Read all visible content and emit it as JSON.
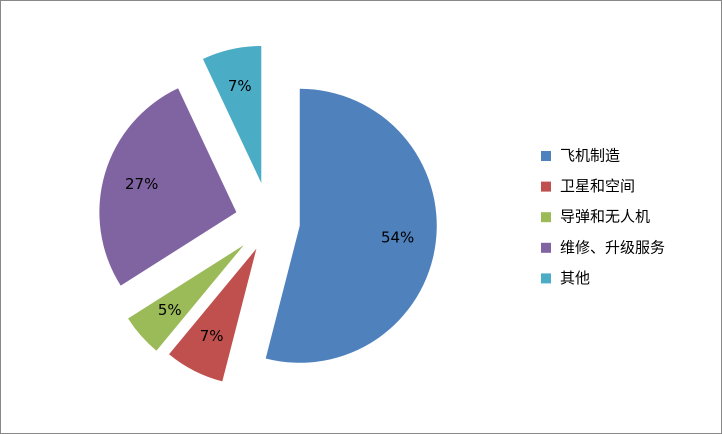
{
  "chart_data": {
    "type": "pie",
    "categories": [
      "飞机制造",
      "卫星和空间",
      "导弹和无人机",
      "维修、升级服务",
      "其他"
    ],
    "values": [
      54,
      7,
      5,
      27,
      7
    ],
    "value_labels": [
      "54%",
      "7%",
      "5%",
      "27%",
      "7%"
    ],
    "colors": [
      "#4f81bd",
      "#c0504d",
      "#9bbb59",
      "#8064a2",
      "#4bacc6"
    ],
    "legend": "right"
  }
}
